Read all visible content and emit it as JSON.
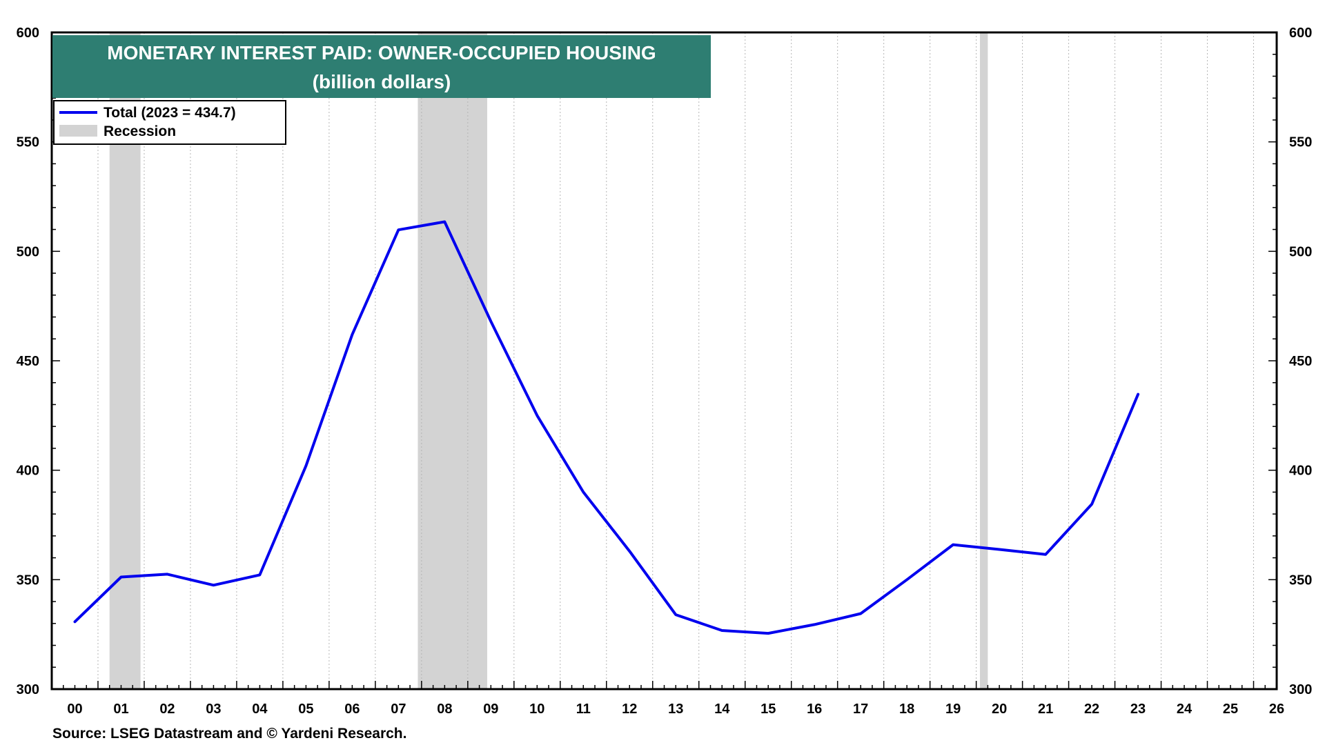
{
  "chart_data": {
    "type": "line",
    "title": "MONETARY INTEREST PAID: OWNER-OCCUPIED HOUSING",
    "subtitle": "(billion dollars)",
    "xlabel": "",
    "ylabel": "",
    "source": "Source: LSEG Datastream and © Yardeni Research.",
    "x_ticks": [
      "00",
      "01",
      "02",
      "03",
      "04",
      "05",
      "06",
      "07",
      "08",
      "09",
      "10",
      "11",
      "12",
      "13",
      "14",
      "15",
      "16",
      "17",
      "18",
      "19",
      "20",
      "21",
      "22",
      "23",
      "24",
      "25",
      "26"
    ],
    "xlim": [
      2000,
      2026.5
    ],
    "ylim": [
      300,
      600
    ],
    "y_ticks": [
      300,
      350,
      400,
      450,
      500,
      550,
      600
    ],
    "y_tick_labels": [
      "300",
      "350",
      "400",
      "450",
      "500",
      "550",
      "600"
    ],
    "grid": true,
    "dual_y_axis": true,
    "legend_position": "top-left",
    "series": [
      {
        "name": "Total (2023 = 434.7)",
        "color": "#0000ee",
        "x": [
          2000,
          2001,
          2002,
          2003,
          2004,
          2005,
          2006,
          2007,
          2008,
          2009,
          2010,
          2011,
          2012,
          2013,
          2014,
          2015,
          2016,
          2017,
          2018,
          2019,
          2020,
          2021,
          2022,
          2023
        ],
        "values": [
          330.8,
          351.2,
          352.5,
          347.5,
          352.2,
          402.0,
          462.0,
          509.8,
          513.5,
          468.0,
          425.0,
          390.0,
          363.0,
          334.0,
          326.8,
          325.5,
          329.5,
          334.5,
          350.0,
          366.0,
          363.8,
          361.5,
          384.5,
          434.7
        ]
      }
    ],
    "recessions": {
      "name": "Recession",
      "color": "#d3d3d3",
      "periods": [
        [
          2001.25,
          2001.92
        ],
        [
          2007.92,
          2009.42
        ],
        [
          2020.08,
          2020.25
        ]
      ]
    }
  }
}
